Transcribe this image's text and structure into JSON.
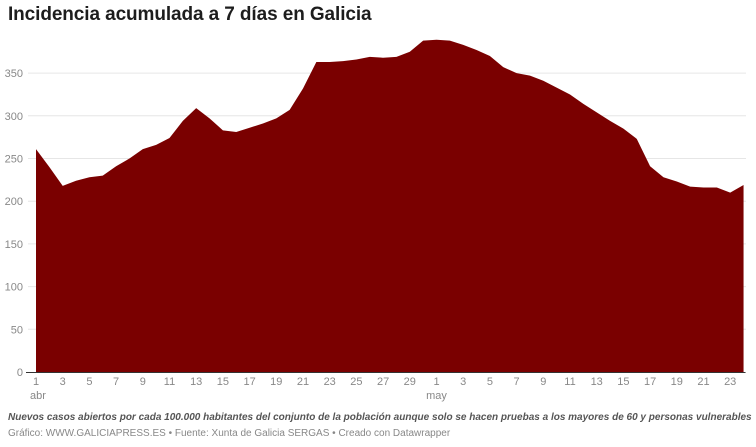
{
  "title": "Incidencia acumulada a 7 días en Galicia",
  "notes": "Nuevos casos abiertos por cada 100.000 habitantes del conjunto de la población aunque solo se hacen pruebas a los mayores de 60 y personas vulnerables",
  "credit": "Gráfico: WWW.GALICIAPRESS.ES • Fuente: Xunta de Galicia SERGAS • Creado con Datawrapper",
  "colors": {
    "area_fill": "#7a0000",
    "gridline": "#e6e6e6",
    "axis_line": "#333333",
    "tick_label": "#888888"
  },
  "chart_data": {
    "type": "area",
    "title": "Incidencia acumulada a 7 días en Galicia",
    "subtitle": "",
    "xlabel": "",
    "ylabel": "",
    "ylim": [
      0,
      390
    ],
    "grid": true,
    "legend": "none",
    "y_ticks": [
      0,
      50,
      100,
      150,
      200,
      250,
      300,
      350
    ],
    "x_tick_labels": [
      {
        "day_index": 0,
        "label": "1",
        "month": "abr"
      },
      {
        "day_index": 2,
        "label": "3"
      },
      {
        "day_index": 4,
        "label": "5"
      },
      {
        "day_index": 6,
        "label": "7"
      },
      {
        "day_index": 8,
        "label": "9"
      },
      {
        "day_index": 10,
        "label": "11"
      },
      {
        "day_index": 12,
        "label": "13"
      },
      {
        "day_index": 14,
        "label": "15"
      },
      {
        "day_index": 16,
        "label": "17"
      },
      {
        "day_index": 18,
        "label": "19"
      },
      {
        "day_index": 20,
        "label": "21"
      },
      {
        "day_index": 22,
        "label": "23"
      },
      {
        "day_index": 24,
        "label": "25"
      },
      {
        "day_index": 26,
        "label": "27"
      },
      {
        "day_index": 28,
        "label": "29"
      },
      {
        "day_index": 30,
        "label": "1",
        "month": "may"
      },
      {
        "day_index": 32,
        "label": "3"
      },
      {
        "day_index": 34,
        "label": "5"
      },
      {
        "day_index": 36,
        "label": "7"
      },
      {
        "day_index": 38,
        "label": "9"
      },
      {
        "day_index": 40,
        "label": "11"
      },
      {
        "day_index": 42,
        "label": "13"
      },
      {
        "day_index": 44,
        "label": "15"
      },
      {
        "day_index": 46,
        "label": "17"
      },
      {
        "day_index": 48,
        "label": "19"
      },
      {
        "day_index": 50,
        "label": "21"
      },
      {
        "day_index": 52,
        "label": "23"
      }
    ],
    "x": [
      "1 abr",
      "2 abr",
      "3 abr",
      "4 abr",
      "5 abr",
      "6 abr",
      "7 abr",
      "8 abr",
      "9 abr",
      "10 abr",
      "11 abr",
      "12 abr",
      "13 abr",
      "14 abr",
      "15 abr",
      "16 abr",
      "17 abr",
      "18 abr",
      "19 abr",
      "20 abr",
      "21 abr",
      "22 abr",
      "23 abr",
      "24 abr",
      "25 abr",
      "26 abr",
      "27 abr",
      "28 abr",
      "29 abr",
      "30 abr",
      "1 may",
      "2 may",
      "3 may",
      "4 may",
      "5 may",
      "6 may",
      "7 may",
      "8 may",
      "9 may",
      "10 may",
      "11 may",
      "12 may",
      "13 may",
      "14 may",
      "15 may",
      "16 may",
      "17 may",
      "18 may",
      "19 may",
      "20 may",
      "21 may",
      "22 may",
      "23 may",
      "24 may"
    ],
    "series": [
      {
        "name": "Incidencia acumulada 7 días",
        "values": [
          261,
          240,
          218,
          224,
          228,
          230,
          241,
          250,
          261,
          266,
          274,
          294,
          309,
          297,
          283,
          281,
          286,
          291,
          297,
          307,
          332,
          363,
          363,
          364,
          366,
          369,
          368,
          369,
          375,
          388,
          389,
          388,
          383,
          377,
          370,
          357,
          350,
          347,
          341,
          333,
          325,
          314,
          304,
          294,
          285,
          273,
          241,
          228,
          223,
          217,
          216,
          216,
          210,
          219
        ]
      }
    ]
  }
}
